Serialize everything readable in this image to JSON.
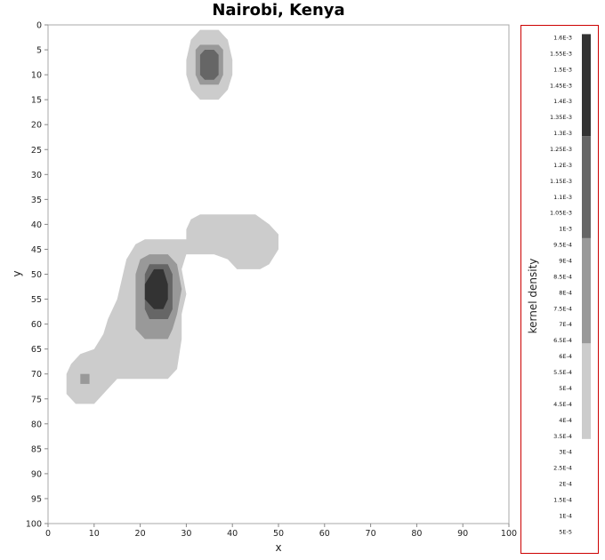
{
  "chart_data": {
    "type": "heatmap",
    "title": "Nairobi, Kenya",
    "xlabel": "x",
    "ylabel": "y",
    "xlim": [
      0,
      100
    ],
    "ylim": [
      0,
      100
    ],
    "y_axis_inverted": true,
    "x_ticks": [
      0,
      10,
      20,
      30,
      40,
      50,
      60,
      70,
      80,
      90,
      100
    ],
    "y_ticks": [
      0,
      5,
      10,
      15,
      20,
      25,
      30,
      35,
      40,
      45,
      50,
      55,
      60,
      65,
      70,
      75,
      80,
      85,
      90,
      95,
      100
    ],
    "grid": false,
    "colorbar": {
      "title": "kernel density",
      "ticks": [
        "1.6E-3",
        "1.55E-3",
        "1.5E-3",
        "1.45E-3",
        "1.4E-3",
        "1.35E-3",
        "1.3E-3",
        "1.25E-3",
        "1.2E-3",
        "1.15E-3",
        "1.1E-3",
        "1.05E-3",
        "1E-3",
        "9.5E-4",
        "9E-4",
        "8.5E-4",
        "8E-4",
        "7.5E-4",
        "7E-4",
        "6.5E-4",
        "6E-4",
        "5.5E-4",
        "5E-4",
        "4.5E-4",
        "4E-4",
        "3.5E-4",
        "3E-4",
        "2.5E-4",
        "2E-4",
        "1.5E-4",
        "1E-4",
        "5E-5"
      ],
      "bands": [
        {
          "min": 0.00034,
          "max": 0.00064,
          "color": "#cccccc"
        },
        {
          "min": 0.00064,
          "max": 0.00097,
          "color": "#999999"
        },
        {
          "min": 0.00097,
          "max": 0.00129,
          "color": "#666666"
        },
        {
          "min": 0.00129,
          "max": 0.00161,
          "color": "#333333"
        }
      ]
    },
    "contour_regions": [
      {
        "level": 1,
        "color": "#cccccc",
        "label": "3.4E-4 to 6.4E-4",
        "polygons": [
          [
            [
              31,
              3
            ],
            [
              33,
              1
            ],
            [
              37,
              1
            ],
            [
              39,
              3
            ],
            [
              40,
              7
            ],
            [
              40,
              10
            ],
            [
              39,
              13
            ],
            [
              37,
              15
            ],
            [
              33,
              15
            ],
            [
              31,
              13
            ],
            [
              30,
              10
            ],
            [
              30,
              7
            ]
          ],
          [
            [
              30,
              41
            ],
            [
              31,
              39
            ],
            [
              33,
              38
            ],
            [
              45,
              38
            ],
            [
              48,
              40
            ],
            [
              50,
              42
            ],
            [
              50,
              45
            ],
            [
              48,
              48
            ],
            [
              46,
              49
            ],
            [
              41,
              49
            ],
            [
              39,
              47
            ],
            [
              36,
              46
            ],
            [
              33,
              46
            ],
            [
              30,
              46
            ],
            [
              29,
              49
            ],
            [
              30,
              54
            ],
            [
              29,
              58
            ],
            [
              29,
              63
            ],
            [
              28,
              69
            ],
            [
              26,
              71
            ],
            [
              21,
              71
            ],
            [
              15,
              71
            ],
            [
              13,
              73
            ],
            [
              11,
              75
            ],
            [
              10,
              76
            ],
            [
              6,
              76
            ],
            [
              4,
              74
            ],
            [
              4,
              70
            ],
            [
              5,
              68
            ],
            [
              7,
              66
            ],
            [
              10,
              65
            ],
            [
              12,
              62
            ],
            [
              13,
              59
            ],
            [
              15,
              55
            ],
            [
              16,
              51
            ],
            [
              17,
              47
            ],
            [
              19,
              44
            ],
            [
              21,
              43
            ],
            [
              28,
              43
            ],
            [
              30,
              43
            ]
          ]
        ]
      },
      {
        "level": 2,
        "color": "#999999",
        "label": "6.4E-4 to 9.7E-4",
        "polygons": [
          [
            [
              32,
              5
            ],
            [
              33,
              4
            ],
            [
              37,
              4
            ],
            [
              38,
              5
            ],
            [
              38,
              10
            ],
            [
              37,
              12
            ],
            [
              33,
              12
            ],
            [
              32,
              10
            ]
          ],
          [
            [
              20,
              47
            ],
            [
              22,
              46
            ],
            [
              26,
              46
            ],
            [
              28,
              48
            ],
            [
              29,
              53
            ],
            [
              28,
              58
            ],
            [
              27,
              61
            ],
            [
              26,
              63
            ],
            [
              21,
              63
            ],
            [
              19,
              61
            ],
            [
              19,
              55
            ],
            [
              19,
              50
            ]
          ],
          [
            [
              7,
              70
            ],
            [
              9,
              70
            ],
            [
              9,
              72
            ],
            [
              7,
              72
            ]
          ]
        ]
      },
      {
        "level": 3,
        "color": "#666666",
        "label": "9.7E-4 to 1.29E-3",
        "polygons": [
          [
            [
              33,
              6
            ],
            [
              34,
              5
            ],
            [
              36,
              5
            ],
            [
              37,
              6
            ],
            [
              37,
              10
            ],
            [
              36,
              11
            ],
            [
              34,
              11
            ],
            [
              33,
              10
            ]
          ],
          [
            [
              21,
              50
            ],
            [
              22,
              48
            ],
            [
              26,
              48
            ],
            [
              27,
              50
            ],
            [
              27,
              57
            ],
            [
              26,
              59
            ],
            [
              22,
              59
            ],
            [
              21,
              57
            ]
          ]
        ]
      },
      {
        "level": 4,
        "color": "#333333",
        "label": "1.29E-3 to 1.61E-3",
        "polygons": [
          [
            [
              21,
              52
            ],
            [
              23,
              49
            ],
            [
              25,
              49
            ],
            [
              26,
              52
            ],
            [
              26,
              55
            ],
            [
              25,
              57
            ],
            [
              23,
              57
            ],
            [
              21,
              55
            ]
          ]
        ]
      }
    ]
  }
}
